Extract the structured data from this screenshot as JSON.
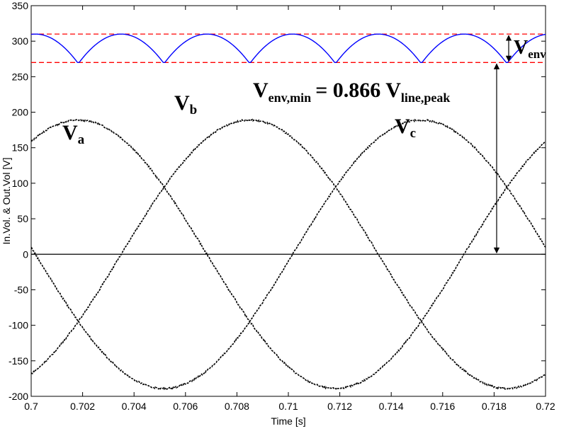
{
  "chart_data": {
    "type": "line",
    "xlabel": "Time [s]",
    "ylabel": "In.Vol. & Out.Vol [V]",
    "xlim": [
      0.7,
      0.72
    ],
    "ylim": [
      -200,
      350
    ],
    "xticks": [
      0.7,
      0.702,
      0.704,
      0.706,
      0.708,
      0.71,
      0.712,
      0.714,
      0.716,
      0.718,
      0.72
    ],
    "yticks": [
      -200,
      -150,
      -100,
      -50,
      0,
      50,
      100,
      150,
      200,
      250,
      300,
      350
    ],
    "xtick_labels": [
      "0.7",
      "0.702",
      "0.704",
      "0.706",
      "0.708",
      "0.71",
      "0.712",
      "0.714",
      "0.716",
      "0.718",
      "0.72"
    ],
    "ytick_labels": [
      "-200",
      "-150",
      "-100",
      "-50",
      "0",
      "50",
      "100",
      "150",
      "200",
      "250",
      "300",
      "350"
    ],
    "grid": false,
    "phase_amplitude": 189,
    "frequency_hz": 50,
    "envelope_max": 310,
    "envelope_min": 270,
    "series": [
      {
        "name": "V_a",
        "color": "#000000",
        "style": "dashed",
        "phase_deg": 57
      },
      {
        "name": "V_b",
        "color": "#000000",
        "style": "dashed",
        "phase_deg": -63
      },
      {
        "name": "V_c",
        "color": "#000000",
        "style": "dashed",
        "phase_deg": 177
      },
      {
        "name": "V_env",
        "color": "#0000ff",
        "style": "solid"
      }
    ],
    "reference_lines": [
      {
        "y": 310,
        "color": "#ff0000",
        "style": "dashed"
      },
      {
        "y": 270,
        "color": "#ff0000",
        "style": "dashed"
      },
      {
        "y": 0,
        "color": "#000000",
        "style": "solid"
      }
    ],
    "annotations": {
      "va": {
        "main": "V",
        "sub": "a"
      },
      "vb": {
        "main": "V",
        "sub": "b"
      },
      "vc": {
        "main": "V",
        "sub": "c"
      },
      "venv": {
        "main": "V",
        "sub": "env"
      },
      "formula": {
        "lhs_main": "V",
        "lhs_sub": "env,min",
        "eq": "= 0.866 V",
        "rhs_sub": "line,peak"
      }
    }
  }
}
